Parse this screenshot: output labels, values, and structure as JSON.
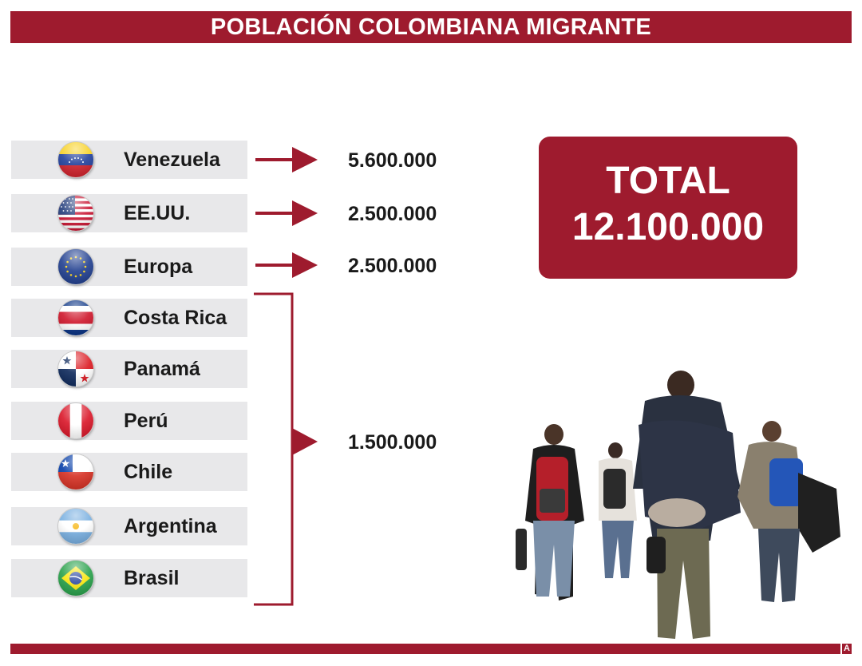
{
  "title": "POBLACIÓN COLOMBIANA MIGRANTE",
  "chart_data": {
    "type": "table",
    "title": "POBLACIÓN COLOMBIANA MIGRANTE",
    "rows": [
      {
        "country": "Venezuela",
        "value": "5.600.000",
        "population": 5600000,
        "flag": "venezuela-flag"
      },
      {
        "country": "EE.UU.",
        "value": "2.500.000",
        "population": 2500000,
        "flag": "usa-flag"
      },
      {
        "country": "Europa",
        "value": "2.500.000",
        "population": 2500000,
        "flag": "eu-flag"
      }
    ],
    "grouped": {
      "countries": [
        {
          "country": "Costa Rica",
          "flag": "costa-rica-flag"
        },
        {
          "country": "Panamá",
          "flag": "panama-flag"
        },
        {
          "country": "Perú",
          "flag": "peru-flag"
        },
        {
          "country": "Chile",
          "flag": "chile-flag"
        },
        {
          "country": "Argentina",
          "flag": "argentina-flag"
        },
        {
          "country": "Brasil",
          "flag": "brasil-flag"
        }
      ],
      "value": "1.500.000",
      "population": 1500000
    },
    "total": {
      "label": "TOTAL",
      "value": "12.100.000",
      "population": 12100000
    }
  },
  "colors": {
    "accent": "#9e1b2e",
    "row_bg": "#e8e8ea",
    "text": "#1a1a1a"
  },
  "logo_text": "A"
}
